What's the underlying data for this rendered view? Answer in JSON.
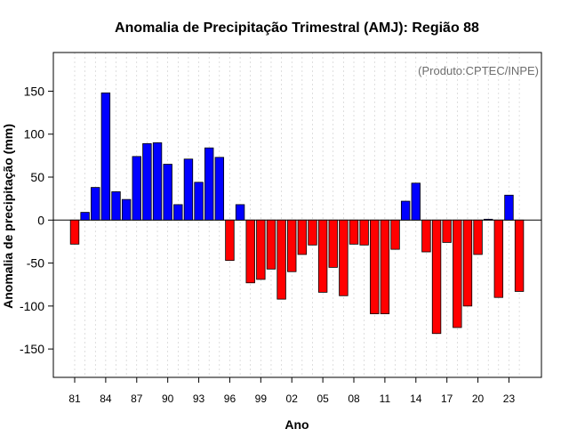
{
  "chart_data": {
    "type": "bar",
    "title": "Anomalia de Precipitação Trimestral (AMJ): Região 88",
    "xlabel": "Ano",
    "ylabel": "Anomalia de precipitação (mm)",
    "annotation": "(Produto:CPTEC/INPE)",
    "ylim": [
      -183,
      195
    ],
    "yticks": [
      -150,
      -100,
      -50,
      0,
      50,
      100,
      150
    ],
    "xtick_labels": [
      "81",
      "84",
      "87",
      "90",
      "93",
      "96",
      "99",
      "02",
      "05",
      "08",
      "11",
      "14",
      "17",
      "20",
      "23"
    ],
    "positive_color": "#0000ff",
    "negative_color": "#ff0000",
    "categories": [
      "1981",
      "1982",
      "1983",
      "1984",
      "1985",
      "1986",
      "1987",
      "1988",
      "1989",
      "1990",
      "1991",
      "1992",
      "1993",
      "1994",
      "1995",
      "1996",
      "1997",
      "1998",
      "1999",
      "2000",
      "2001",
      "2002",
      "2003",
      "2004",
      "2005",
      "2006",
      "2007",
      "2008",
      "2009",
      "2010",
      "2011",
      "2012",
      "2013",
      "2014",
      "2015",
      "2016",
      "2017",
      "2018",
      "2019",
      "2020",
      "2021",
      "2022",
      "2023",
      "2024"
    ],
    "values": [
      -28,
      9,
      38,
      148,
      33,
      24,
      74,
      89,
      90,
      65,
      18,
      71,
      44,
      84,
      73,
      -47,
      18,
      -73,
      -69,
      -57,
      -92,
      -60,
      -40,
      -29,
      -84,
      -55,
      -88,
      -28,
      -29,
      -109,
      -109,
      -34,
      22,
      43,
      -37,
      -132,
      -26,
      -125,
      -100,
      -40,
      1,
      -90,
      29,
      -83
    ]
  }
}
